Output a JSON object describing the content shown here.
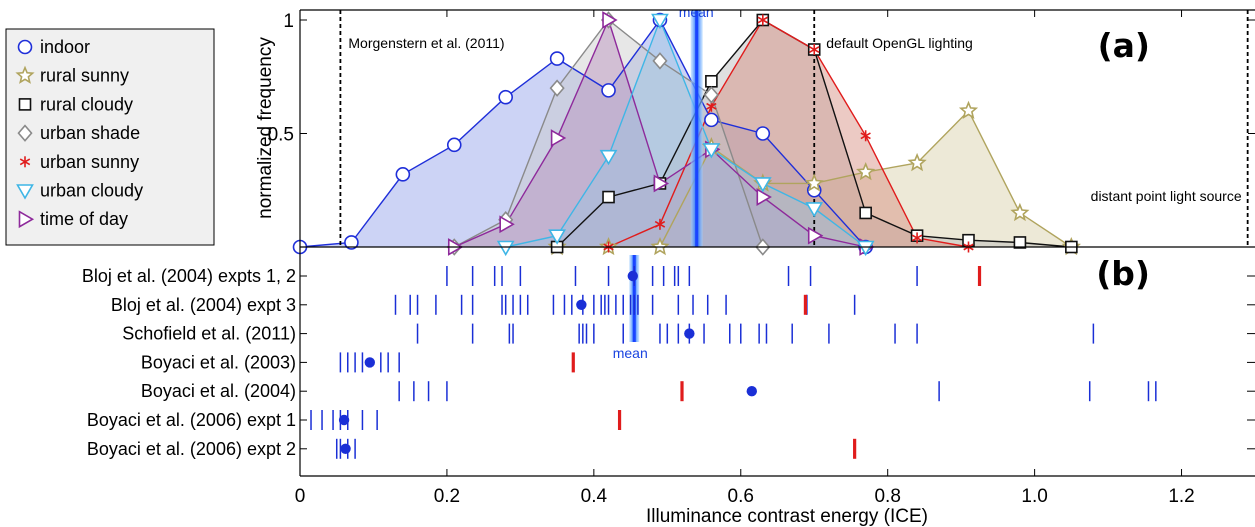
{
  "chart_data": [
    {
      "panel": "(a)",
      "type": "line",
      "ylabel": "normalized frequency",
      "xlabel": "Illuminance contrast energy (ICE)",
      "ylim": [
        0,
        1
      ],
      "xlim": [
        0,
        1.3
      ],
      "y_ticks": [
        {
          "value": 0.5,
          "label": "0.5"
        },
        {
          "value": 1,
          "label": "1"
        }
      ],
      "legend_position": "top-left",
      "series": [
        {
          "name": "indoor",
          "marker": "circle",
          "color": "#1f2fd9",
          "fill": "#8e9de8",
          "points": [
            [
              0,
              0
            ],
            [
              0.07,
              0.02
            ],
            [
              0.14,
              0.32
            ],
            [
              0.21,
              0.45
            ],
            [
              0.28,
              0.66
            ],
            [
              0.35,
              0.83
            ],
            [
              0.42,
              0.69
            ],
            [
              0.49,
              1.0
            ],
            [
              0.56,
              0.56
            ],
            [
              0.63,
              0.5
            ],
            [
              0.7,
              0.25
            ],
            [
              0.77,
              0
            ]
          ]
        },
        {
          "name": "rural sunny",
          "marker": "star",
          "color": "#b0a45e",
          "fill": "#d6cfa6",
          "points": [
            [
              0.35,
              0
            ],
            [
              0.42,
              0
            ],
            [
              0.49,
              0
            ],
            [
              0.56,
              0.44
            ],
            [
              0.63,
              0.28
            ],
            [
              0.7,
              0.28
            ],
            [
              0.77,
              0.33
            ],
            [
              0.84,
              0.37
            ],
            [
              0.91,
              0.6
            ],
            [
              0.98,
              0.15
            ],
            [
              1.05,
              0
            ]
          ]
        },
        {
          "name": "rural cloudy",
          "marker": "square",
          "color": "#111111",
          "fill": "#b9b9b9",
          "points": [
            [
              0.35,
              0
            ],
            [
              0.42,
              0.22
            ],
            [
              0.49,
              0.28
            ],
            [
              0.56,
              0.73
            ],
            [
              0.63,
              1.0
            ],
            [
              0.7,
              0.87
            ],
            [
              0.77,
              0.15
            ],
            [
              0.84,
              0.05
            ],
            [
              0.91,
              0.03
            ],
            [
              0.98,
              0.02
            ],
            [
              1.05,
              0
            ]
          ]
        },
        {
          "name": "urban shade",
          "marker": "diamond",
          "color": "#8a8a8a",
          "fill": "#c9c9c9",
          "points": [
            [
              0.21,
              0
            ],
            [
              0.28,
              0.12
            ],
            [
              0.35,
              0.7
            ],
            [
              0.42,
              1.0
            ],
            [
              0.49,
              0.82
            ],
            [
              0.56,
              0.67
            ],
            [
              0.63,
              0
            ]
          ]
        },
        {
          "name": "urban sunny",
          "marker": "asterisk",
          "color": "#e01c1c",
          "fill": "#d58a7c",
          "points": [
            [
              0.42,
              0
            ],
            [
              0.49,
              0.1
            ],
            [
              0.56,
              0.62
            ],
            [
              0.63,
              1.0
            ],
            [
              0.7,
              0.87
            ],
            [
              0.77,
              0.49
            ],
            [
              0.84,
              0.04
            ],
            [
              0.91,
              0
            ]
          ]
        },
        {
          "name": "urban cloudy",
          "marker": "triangle-down",
          "color": "#3fb6e6",
          "fill": "#9cc4e3",
          "points": [
            [
              0.28,
              0
            ],
            [
              0.35,
              0.05
            ],
            [
              0.42,
              0.4
            ],
            [
              0.49,
              1.0
            ],
            [
              0.56,
              0.43
            ],
            [
              0.63,
              0.28
            ],
            [
              0.7,
              0.17
            ],
            [
              0.77,
              0
            ]
          ]
        },
        {
          "name": "time of day",
          "marker": "triangle-right",
          "color": "#8e2a9b",
          "fill": "#b78fbc",
          "points": [
            [
              0.21,
              0
            ],
            [
              0.28,
              0.1
            ],
            [
              0.35,
              0.48
            ],
            [
              0.42,
              1.0
            ],
            [
              0.49,
              0.28
            ],
            [
              0.56,
              0.43
            ],
            [
              0.63,
              0.22
            ],
            [
              0.7,
              0.05
            ],
            [
              0.77,
              0
            ]
          ]
        }
      ],
      "mean": {
        "x": 0.54,
        "label": "mean"
      },
      "reference_lines": [
        {
          "x": 0.055,
          "label": "Morgenstern et al. (2011)"
        },
        {
          "x": 0.7,
          "label": "default OpenGL lighting"
        },
        {
          "x": 1.29,
          "label": "distant point light source"
        }
      ]
    },
    {
      "panel": "(b)",
      "type": "scatter",
      "mean": {
        "x": 0.455,
        "label": "mean"
      },
      "rows": [
        {
          "label": "Bloj et al. (2004) expts 1, 2",
          "ticks": [
            0.2,
            0.235,
            0.265,
            0.275,
            0.3,
            0.375,
            0.42,
            0.455,
            0.48,
            0.495,
            0.51,
            0.515,
            0.53,
            0.665,
            0.695,
            0.84
          ],
          "dot": 0.453,
          "red": 0.925
        },
        {
          "label": "Bloj et al. (2004) expt 3",
          "ticks": [
            0.13,
            0.15,
            0.16,
            0.185,
            0.22,
            0.235,
            0.275,
            0.28,
            0.29,
            0.3,
            0.31,
            0.345,
            0.36,
            0.37,
            0.385,
            0.4,
            0.41,
            0.415,
            0.42,
            0.43,
            0.44,
            0.45,
            0.455,
            0.46,
            0.48,
            0.515,
            0.535,
            0.555,
            0.58,
            0.69,
            0.755
          ],
          "dot": 0.383,
          "red": 0.688
        },
        {
          "label": "Schofield et al. (2011)",
          "ticks": [
            0.16,
            0.235,
            0.285,
            0.29,
            0.38,
            0.385,
            0.39,
            0.4,
            0.44,
            0.49,
            0.5,
            0.515,
            0.53,
            0.55,
            0.585,
            0.6,
            0.625,
            0.635,
            0.67,
            0.72,
            0.81,
            0.84,
            1.08
          ],
          "dot": 0.53,
          "red": null
        },
        {
          "label": "Boyaci et al. (2003)",
          "ticks": [
            0.055,
            0.065,
            0.075,
            0.085,
            0.11,
            0.12,
            0.135
          ],
          "dot": 0.095,
          "red": 0.372
        },
        {
          "label": "Boyaci et al. (2004)",
          "ticks": [
            0.135,
            0.155,
            0.175,
            0.2,
            0.87,
            1.075,
            1.155,
            1.165
          ],
          "dot": 0.615,
          "red": 0.52
        },
        {
          "label": "Boyaci et al. (2006) expt 1",
          "ticks": [
            0.015,
            0.03,
            0.045,
            0.055,
            0.065,
            0.085,
            0.105
          ],
          "dot": 0.06,
          "red": 0.435
        },
        {
          "label": "Boyaci et al. (2006) expt 2",
          "ticks": [
            0.05,
            0.055,
            0.065,
            0.075
          ],
          "dot": 0.062,
          "red": 0.755
        }
      ],
      "x_ticks": [
        {
          "value": 0,
          "label": "0"
        },
        {
          "value": 0.2,
          "label": "0.2"
        },
        {
          "value": 0.4,
          "label": "0.4"
        },
        {
          "value": 0.6,
          "label": "0.6"
        },
        {
          "value": 0.8,
          "label": "0.8"
        },
        {
          "value": 1.0,
          "label": "1.0"
        },
        {
          "value": 1.2,
          "label": "1.2"
        }
      ]
    }
  ]
}
